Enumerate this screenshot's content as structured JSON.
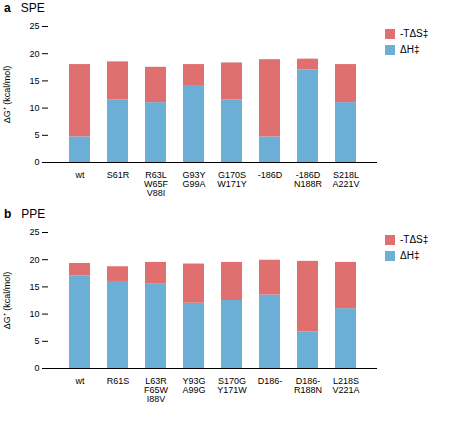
{
  "chart_data": [
    {
      "type": "bar",
      "title": "SPE",
      "annotations": [
        "a"
      ],
      "categories": [
        "wt",
        "S61R",
        "R63L\nW65F\nV88I",
        "G93Y\nG99A",
        "G170S\nW171Y",
        "-186D",
        "-186D\nN188R",
        "S218L\nA221V"
      ],
      "series": [
        {
          "name": "ΔH‡",
          "color": "#6baed6",
          "values": [
            4.7,
            11.5,
            11.0,
            14.0,
            11.5,
            4.7,
            17.0,
            11.0
          ]
        },
        {
          "name": "-TΔS‡",
          "color": "#e07070",
          "values": [
            13.3,
            7.0,
            6.5,
            4.0,
            6.8,
            14.2,
            2.0,
            7.0
          ]
        }
      ],
      "ylabel": "ΔG⁺ (kcal/mol)",
      "ylim": [
        0,
        25
      ],
      "yticks": [
        0,
        5,
        10,
        15,
        20,
        25
      ],
      "stacked": true,
      "grid": false,
      "legend": "right"
    },
    {
      "type": "bar",
      "title": "PPE",
      "annotations": [
        "b"
      ],
      "categories": [
        "wt",
        "R61S",
        "L63R\nF65W\nI88V",
        "Y93G\nA99G",
        "S170G\nY171W",
        "D186-",
        "D186-\nR188N",
        "L218S\nV221A"
      ],
      "series": [
        {
          "name": "ΔH‡",
          "color": "#6baed6",
          "values": [
            17.0,
            16.0,
            15.5,
            12.0,
            12.5,
            13.5,
            6.7,
            11.0
          ]
        },
        {
          "name": "-TΔS‡",
          "color": "#e07070",
          "values": [
            2.3,
            2.7,
            4.0,
            7.2,
            7.0,
            6.4,
            13.0,
            8.5
          ]
        }
      ],
      "ylabel": "ΔG⁺ (kcal/mol)",
      "ylim": [
        0,
        25
      ],
      "yticks": [
        0,
        5,
        10,
        15,
        20,
        25
      ],
      "stacked": true,
      "grid": false,
      "legend": "right"
    }
  ]
}
